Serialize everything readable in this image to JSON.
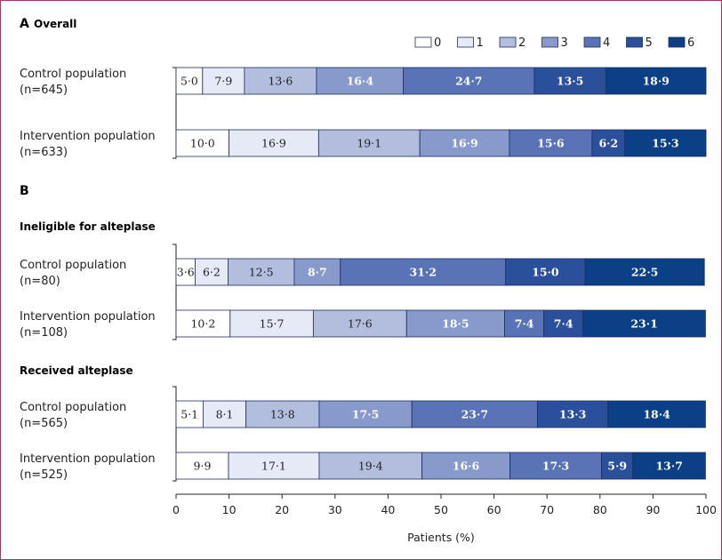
{
  "colors": [
    "#ffffff",
    "#e6eaf6",
    "#b3bddd",
    "#8899cb",
    "#5a73b6",
    "#2a4f9b",
    "#0b3f86"
  ],
  "text_colors": [
    "#222222",
    "#222222",
    "#222222",
    "#ffffff",
    "#ffffff",
    "#ffffff",
    "#ffffff"
  ],
  "chart_data": {
    "type": "bar",
    "stacked": "horizontal-100",
    "xlabel": "Patients (%)",
    "xlim": [
      0,
      100
    ],
    "xticks": [
      "0",
      "10",
      "20",
      "30",
      "40",
      "50",
      "60",
      "70",
      "80",
      "90",
      "100"
    ],
    "legend": {
      "placement": "top-right",
      "entries": [
        "0",
        "1",
        "2",
        "3",
        "4",
        "5",
        "6"
      ]
    },
    "panels": [
      {
        "letter": "A",
        "title": "Overall",
        "groups": [
          {
            "subtitle": "",
            "rows": [
              {
                "label": [
                  "Control population",
                  "(n=645)"
                ],
                "values": [
                  5.0,
                  7.9,
                  13.6,
                  16.4,
                  24.7,
                  13.5,
                  18.9
                ],
                "labels": [
                  "5·0",
                  "7·9",
                  "13·6",
                  "16·4",
                  "24·7",
                  "13·5",
                  "18·9"
                ]
              },
              {
                "label": [
                  "Intervention population",
                  "(n=633)"
                ],
                "values": [
                  10.0,
                  16.9,
                  19.1,
                  16.9,
                  15.6,
                  6.2,
                  15.3
                ],
                "labels": [
                  "10·0",
                  "16·9",
                  "19·1",
                  "16·9",
                  "15·6",
                  "6·2",
                  "15·3"
                ]
              }
            ]
          }
        ]
      },
      {
        "letter": "B",
        "title": "",
        "groups": [
          {
            "subtitle": "Ineligible for alteplase",
            "rows": [
              {
                "label": [
                  "Control population",
                  "(n=80)"
                ],
                "values": [
                  3.6,
                  6.2,
                  12.5,
                  8.7,
                  31.2,
                  15.0,
                  22.5
                ],
                "labels": [
                  "3·6",
                  "6·2",
                  "12·5",
                  "8·7",
                  "31·2",
                  "15·0",
                  "22·5"
                ]
              },
              {
                "label": [
                  "Intervention population",
                  "(n=108)"
                ],
                "values": [
                  10.2,
                  15.7,
                  17.6,
                  18.5,
                  7.4,
                  7.4,
                  23.1
                ],
                "labels": [
                  "10·2",
                  "15·7",
                  "17·6",
                  "18·5",
                  "7·4",
                  "7·4",
                  "23·1"
                ]
              }
            ]
          },
          {
            "subtitle": "Received alteplase",
            "rows": [
              {
                "label": [
                  "Control population",
                  "(n=565)"
                ],
                "values": [
                  5.1,
                  8.1,
                  13.8,
                  17.5,
                  23.7,
                  13.3,
                  18.4
                ],
                "labels": [
                  "5·1",
                  "8·1",
                  "13·8",
                  "17·5",
                  "23·7",
                  "13·3",
                  "18·4"
                ]
              },
              {
                "label": [
                  "Intervention population",
                  "(n=525)"
                ],
                "values": [
                  9.9,
                  17.1,
                  19.4,
                  16.6,
                  17.3,
                  5.9,
                  13.7
                ],
                "labels": [
                  "9·9",
                  "17·1",
                  "19·4",
                  "16·6",
                  "17·3",
                  "5·9",
                  "13·7"
                ]
              }
            ]
          }
        ]
      }
    ]
  }
}
